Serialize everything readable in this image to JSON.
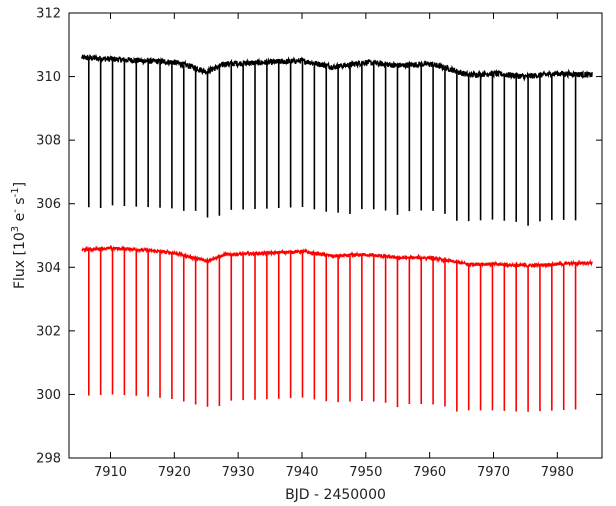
{
  "chart_data": {
    "type": "line",
    "title": "",
    "xlabel": "BJD - 2450000",
    "ylabel_main": "Flux [10",
    "ylabel_exp1": "3",
    "ylabel_mid": " e",
    "ylabel_exp2": "-",
    "ylabel_mid2": " s",
    "ylabel_exp3": "-1",
    "ylabel_end": "]",
    "xlim": [
      7903.5,
      7987.0
    ],
    "ylim": [
      298,
      312
    ],
    "x_ticks": [
      7910,
      7920,
      7930,
      7940,
      7950,
      7960,
      7970,
      7980
    ],
    "x_tick_labels": [
      "7910",
      "7920",
      "7930",
      "7940",
      "7950",
      "7960",
      "7970",
      "7980"
    ],
    "y_ticks": [
      298,
      300,
      302,
      304,
      306,
      308,
      310,
      312
    ],
    "y_tick_labels": [
      "298",
      "300",
      "302",
      "304",
      "306",
      "308",
      "310",
      "312"
    ],
    "grid": false,
    "x_range": [
      7905.5,
      7985.5
    ],
    "transit_epoch": 7906.6,
    "transit_period": 1.86,
    "transit_count": 42,
    "series": [
      {
        "color": "#000000",
        "baseline": [
          [
            7905.5,
            310.6
          ],
          [
            7910,
            310.55
          ],
          [
            7915,
            310.5
          ],
          [
            7920,
            310.45
          ],
          [
            7923,
            310.3
          ],
          [
            7925,
            310.15
          ],
          [
            7928,
            310.4
          ],
          [
            7935,
            310.45
          ],
          [
            7940,
            310.5
          ],
          [
            7945,
            310.3
          ],
          [
            7950,
            310.45
          ],
          [
            7955,
            310.35
          ],
          [
            7960,
            310.4
          ],
          [
            7963,
            310.25
          ],
          [
            7966,
            310.05
          ],
          [
            7970,
            310.1
          ],
          [
            7975,
            310.0
          ],
          [
            7980,
            310.1
          ],
          [
            7985.5,
            310.05
          ]
        ],
        "noise": 0.09,
        "depths": [
          4.7,
          4.7,
          4.6,
          4.6,
          4.6,
          4.6,
          4.6,
          4.6,
          4.6,
          4.5,
          4.6,
          4.7,
          4.6,
          4.6,
          4.6,
          4.6,
          4.6,
          4.6,
          4.6,
          4.6,
          4.6,
          4.6,
          4.7,
          4.6,
          4.6,
          4.6,
          4.7,
          4.6,
          4.6,
          4.6,
          4.6,
          4.7,
          4.6,
          4.6,
          4.6,
          4.6,
          4.6,
          4.7,
          4.6,
          4.6,
          4.6,
          4.6
        ]
      },
      {
        "color": "#ff0000",
        "baseline": [
          [
            7905.5,
            304.55
          ],
          [
            7910,
            304.6
          ],
          [
            7915,
            304.55
          ],
          [
            7920,
            304.45
          ],
          [
            7923,
            304.3
          ],
          [
            7925,
            304.2
          ],
          [
            7928,
            304.4
          ],
          [
            7935,
            304.45
          ],
          [
            7940,
            304.5
          ],
          [
            7945,
            304.35
          ],
          [
            7950,
            304.4
          ],
          [
            7955,
            304.3
          ],
          [
            7960,
            304.3
          ],
          [
            7963,
            304.2
          ],
          [
            7966,
            304.1
          ],
          [
            7970,
            304.1
          ],
          [
            7975,
            304.05
          ],
          [
            7980,
            304.1
          ],
          [
            7985.5,
            304.15
          ]
        ],
        "noise": 0.05,
        "depths": [
          4.6,
          4.6,
          4.6,
          4.6,
          4.6,
          4.6,
          4.6,
          4.6,
          4.6,
          4.6,
          4.6,
          4.7,
          4.6,
          4.6,
          4.6,
          4.6,
          4.6,
          4.6,
          4.6,
          4.6,
          4.6,
          4.6,
          4.6,
          4.6,
          4.6,
          4.6,
          4.7,
          4.6,
          4.6,
          4.6,
          4.6,
          4.7,
          4.6,
          4.6,
          4.6,
          4.6,
          4.6,
          4.6,
          4.6,
          4.6,
          4.6,
          4.6
        ]
      }
    ]
  }
}
